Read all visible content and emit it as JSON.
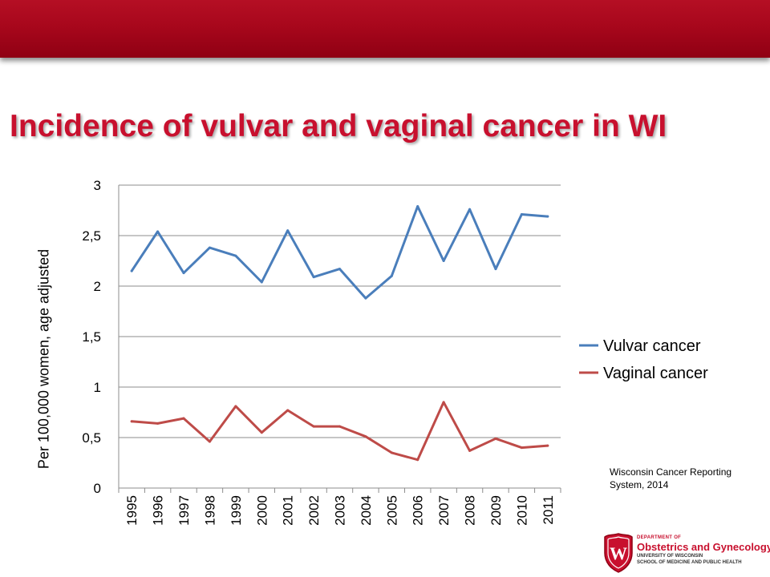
{
  "slide": {
    "title": "Incidence of vulvar and vaginal cancer in WI",
    "source": "Wisconsin Cancer Reporting System, 2014"
  },
  "logo": {
    "department": "DEPARTMENT OF",
    "name": "Obstetrics and Gynecology",
    "university": "UNIVERSITY OF WISCONSIN",
    "school": "SCHOOL OF MEDICINE AND PUBLIC HEALTH",
    "crest_letter": "W"
  },
  "colors": {
    "banner": "#a8071c",
    "title": "#c8102e",
    "vulvar": "#4a7ebb",
    "vaginal": "#be4b48",
    "grid": "#8c8c8c"
  },
  "chart_data": {
    "type": "line",
    "title": "",
    "xlabel": "",
    "ylabel": "Per 100,000 women, age adjusted",
    "x": [
      "1995",
      "1996",
      "1997",
      "1998",
      "1999",
      "2000",
      "2001",
      "2002",
      "2003",
      "2004",
      "2005",
      "2006",
      "2007",
      "2008",
      "2009",
      "2010",
      "2011"
    ],
    "y_ticks": [
      "0",
      "0,5",
      "1",
      "1,5",
      "2",
      "2,5",
      "3"
    ],
    "ylim": [
      0,
      3
    ],
    "grid": true,
    "legend_position": "right",
    "series": [
      {
        "name": "Vulvar cancer",
        "color": "#4a7ebb",
        "values": [
          2.15,
          2.54,
          2.13,
          2.38,
          2.3,
          2.04,
          2.55,
          2.09,
          2.17,
          1.88,
          2.1,
          2.79,
          2.25,
          2.76,
          2.17,
          2.71,
          2.69
        ]
      },
      {
        "name": "Vaginal cancer",
        "color": "#be4b48",
        "values": [
          0.66,
          0.64,
          0.69,
          0.46,
          0.81,
          0.55,
          0.77,
          0.61,
          0.61,
          0.51,
          0.35,
          0.28,
          0.85,
          0.37,
          0.49,
          0.4,
          0.42
        ]
      }
    ]
  }
}
